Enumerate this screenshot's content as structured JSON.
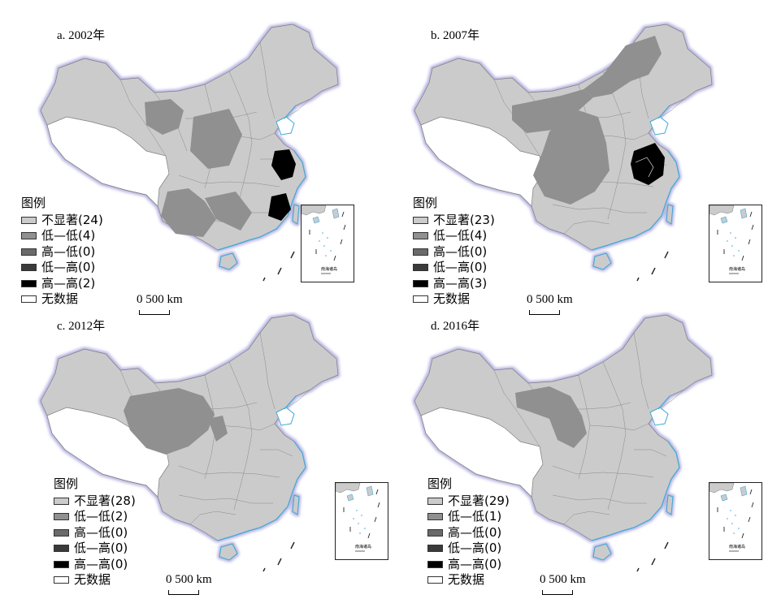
{
  "colors": {
    "not_significant": "#cbcbcb",
    "low_low": "#909090",
    "high_low": "#6a6a6a",
    "low_high": "#3a3a3a",
    "high_high": "#000000",
    "no_data": "#ffffff",
    "water": "#3fa9d6",
    "border_halo": "#c8c6e6"
  },
  "legend_title": "图例",
  "legend_labels": [
    "不显著",
    "低—低",
    "高—低",
    "低—高",
    "高—高",
    "无数据"
  ],
  "scale_label": "0   500 km",
  "inset_label": "南海诸岛",
  "panels": [
    {
      "title": "a. 2002年",
      "legend": [
        "不显著(24)",
        "低—低(4)",
        "高—低(0)",
        "低—高(0)",
        "高—高(2)",
        "无数据"
      ]
    },
    {
      "title": "b. 2007年",
      "legend": [
        "不显著(23)",
        "低—低(4)",
        "高—低(0)",
        "低—高(0)",
        "高—高(3)",
        "无数据"
      ]
    },
    {
      "title": "c. 2012年",
      "legend": [
        "不显著(28)",
        "低—低(2)",
        "高—低(0)",
        "低—高(0)",
        "高—高(0)",
        "无数据"
      ]
    },
    {
      "title": "d. 2016年",
      "legend": [
        "不显著(29)",
        "低—低(1)",
        "高—低(0)",
        "低—高(0)",
        "高—高(0)",
        "无数据"
      ]
    }
  ]
}
